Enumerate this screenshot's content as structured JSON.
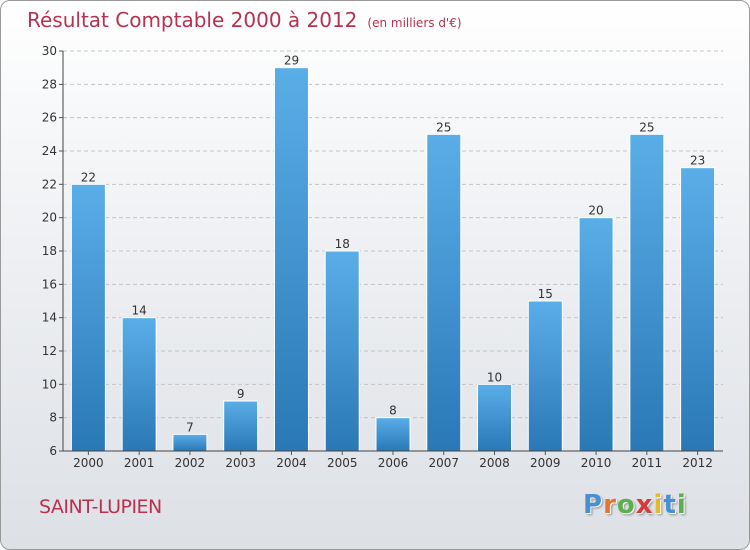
{
  "chart_data": {
    "type": "bar",
    "title": "Résultat Comptable 2000 à 2012",
    "subtitle": "(en milliers d'€)",
    "categories": [
      "2000",
      "2001",
      "2002",
      "2003",
      "2004",
      "2005",
      "2006",
      "2007",
      "2008",
      "2009",
      "2010",
      "2011",
      "2012"
    ],
    "values": [
      22,
      14,
      7,
      9,
      29,
      18,
      8,
      25,
      10,
      15,
      20,
      25,
      23
    ],
    "ylim": [
      6,
      30
    ],
    "yticks": [
      6,
      8,
      10,
      12,
      14,
      16,
      18,
      20,
      22,
      24,
      26,
      28,
      30
    ],
    "xlabel": "",
    "ylabel": "",
    "grid": true
  },
  "footer": {
    "commune": "SAINT-LUPIEN",
    "logo_letters": [
      "P",
      "r",
      "o",
      "x",
      "i",
      "t",
      "i"
    ]
  },
  "colors": {
    "title": "#b8324f",
    "bar_top": "#5aaee8",
    "bar_bottom": "#2a78b6",
    "logo": [
      "#4a8fd0",
      "#e8732c",
      "#5ab04a",
      "#d83a3a",
      "#e8b82c",
      "#4a8fd0",
      "#5ab04a"
    ]
  }
}
